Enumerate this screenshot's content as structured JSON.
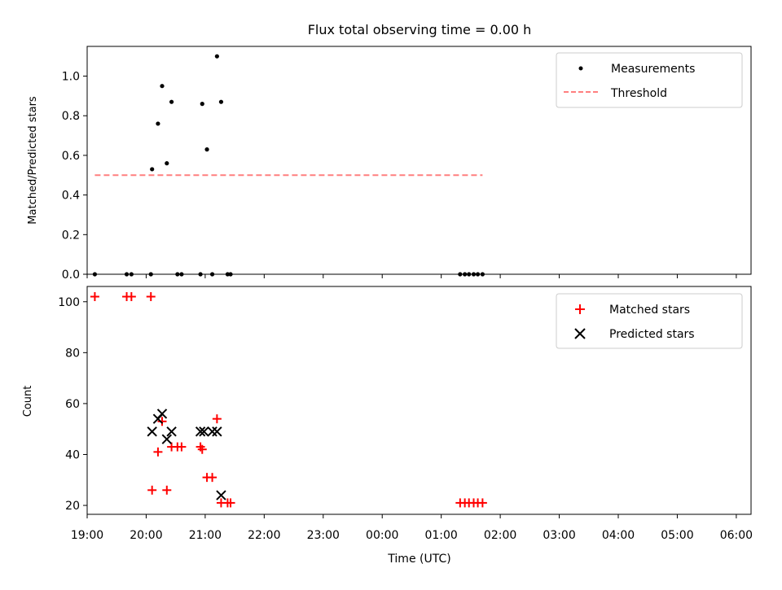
{
  "chart_data": [
    {
      "type": "scatter",
      "title": "Flux total observing time = 0.00 h",
      "ylabel": "Matched/Predicted stars",
      "xlabel": "",
      "ylim": [
        0,
        1.15
      ],
      "yticks": [
        0.0,
        0.2,
        0.4,
        0.6,
        0.8,
        1.0
      ],
      "ytick_labels": [
        "0.0",
        "0.2",
        "0.4",
        "0.6",
        "0.8",
        "1.0"
      ],
      "x_hours_range": [
        19.0,
        30.25
      ],
      "legend_position": "top-right",
      "series": [
        {
          "name": "Measurements",
          "marker": "dot",
          "color": "#000000",
          "x_hours": [
            19.13,
            19.67,
            19.75,
            20.08,
            20.1,
            20.2,
            20.27,
            20.35,
            20.43,
            20.53,
            20.6,
            20.92,
            20.95,
            21.03,
            21.12,
            21.2,
            21.27,
            21.38,
            21.43,
            25.32,
            25.4,
            25.47,
            25.55,
            25.62,
            25.7
          ],
          "values": [
            0,
            0,
            0,
            0,
            0.53,
            0.76,
            0.95,
            0.56,
            0.87,
            0,
            0,
            0,
            0.86,
            0.63,
            0,
            1.1,
            0.87,
            0,
            0,
            0,
            0,
            0,
            0,
            0,
            0
          ]
        },
        {
          "name": "Threshold",
          "marker": "dashed-line",
          "color": "#ff7f7f",
          "x_hours": [
            19.13,
            25.7
          ],
          "values": [
            0.5,
            0.5
          ]
        }
      ]
    },
    {
      "type": "scatter",
      "title": "",
      "ylabel": "Count",
      "xlabel": "Time (UTC)",
      "ylim": [
        16.5,
        106
      ],
      "yticks": [
        20,
        40,
        60,
        80,
        100
      ],
      "ytick_labels": [
        "20",
        "40",
        "60",
        "80",
        "100"
      ],
      "x_hours_range": [
        19.0,
        30.25
      ],
      "x_tick_hours": [
        19,
        20,
        21,
        22,
        23,
        24,
        25,
        26,
        27,
        28,
        29,
        30
      ],
      "x_tick_labels": [
        "19:00",
        "20:00",
        "21:00",
        "22:00",
        "23:00",
        "00:00",
        "01:00",
        "02:00",
        "03:00",
        "04:00",
        "05:00",
        "06:00"
      ],
      "legend_position": "top-right",
      "series": [
        {
          "name": "Matched stars",
          "marker": "plus",
          "color": "#ff0000",
          "x_hours": [
            19.13,
            19.67,
            19.75,
            20.08,
            20.1,
            20.2,
            20.27,
            20.35,
            20.43,
            20.53,
            20.6,
            20.92,
            20.95,
            21.03,
            21.12,
            21.2,
            21.27,
            21.38,
            21.43,
            25.32,
            25.4,
            25.47,
            25.55,
            25.62,
            25.7
          ],
          "values": [
            102,
            102,
            102,
            102,
            26,
            41,
            53,
            26,
            43,
            43,
            43,
            43,
            42,
            31,
            31,
            54,
            21,
            21,
            21,
            21,
            21,
            21,
            21,
            21,
            21
          ]
        },
        {
          "name": "Predicted stars",
          "marker": "x",
          "color": "#000000",
          "x_hours": [
            20.1,
            20.2,
            20.27,
            20.35,
            20.43,
            20.92,
            20.98,
            21.12,
            21.2,
            21.27
          ],
          "values": [
            49,
            54,
            56,
            46,
            49,
            49,
            49,
            49,
            49,
            24
          ]
        }
      ]
    }
  ]
}
